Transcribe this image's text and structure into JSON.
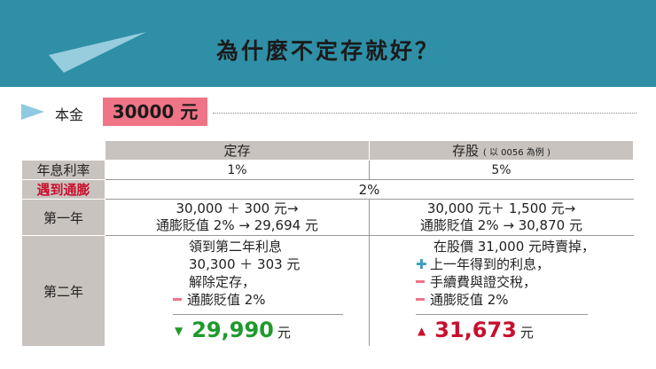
{
  "header": {
    "title": "為什麼不定存就好？"
  },
  "principal": {
    "label": "本金",
    "value": "30000 元"
  },
  "table": {
    "col_fixed": "定存",
    "col_stock": "存股",
    "col_stock_sub": "( 以 0056 為例 )",
    "row_rate": {
      "label": "年息利率",
      "fixed": "1%",
      "stock": "5%"
    },
    "row_inflation": {
      "label": "遇到通膨",
      "value": "2%"
    },
    "row_year1": {
      "label": "第一年",
      "fixed_1": "30,000 ＋ 300 元→",
      "fixed_2": "通膨貶值 2% → 29,694 元",
      "stock_1": "30,000 元＋ 1,500 元→",
      "stock_2": "通膨貶值 2% → 30,870 元"
    },
    "row_year2": {
      "label": "第二年",
      "fixed_lines": [
        "領到第二年利息",
        "30,300 ＋ 303 元",
        "解除定存，",
        "通膨貶值 2%"
      ],
      "fixed_result": "29,990",
      "stock_lines": [
        "在股價 31,000 元時賣掉，",
        "上一年得到的利息，",
        "手續費與證交稅，",
        "通膨貶值 2%"
      ],
      "stock_result": "31,673",
      "unit": "元"
    }
  },
  "colors": {
    "header_bg": "#2f8fa6",
    "accent_pink": "#ef7486",
    "table_gray": "#c9c3bf",
    "down_green": "#1e9a2c",
    "up_red": "#c8102e",
    "plus_blue": "#3a9cbf"
  }
}
